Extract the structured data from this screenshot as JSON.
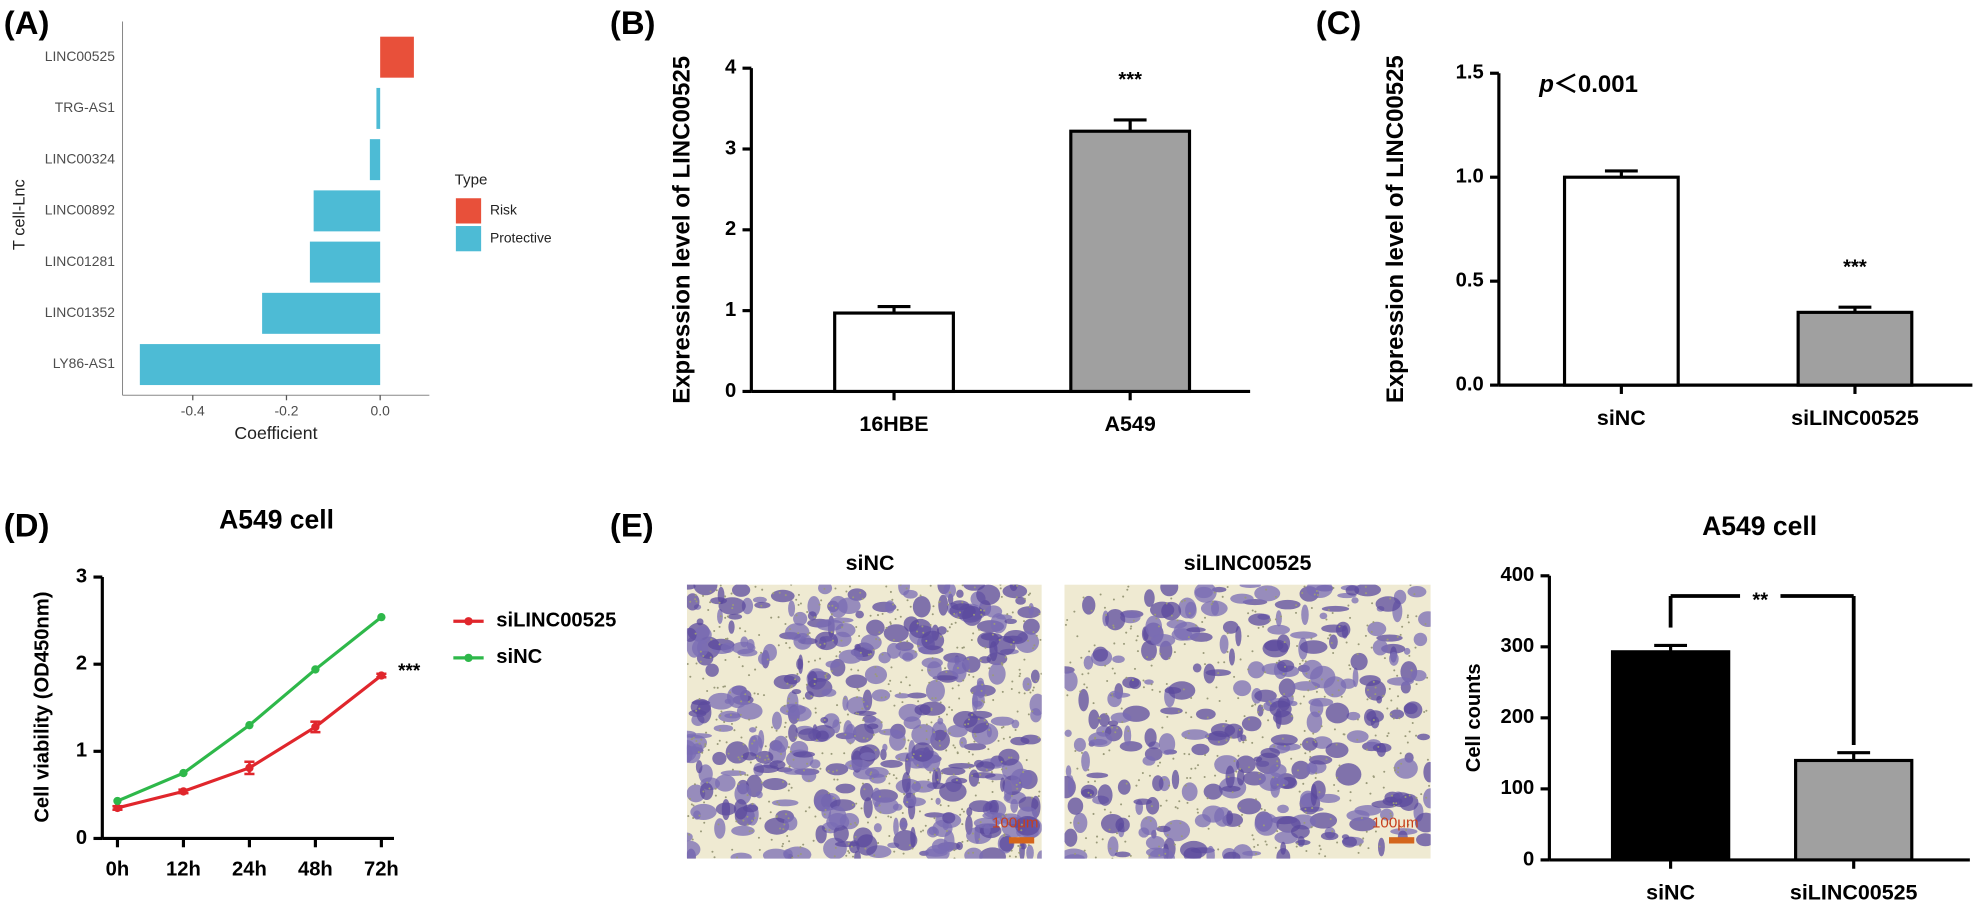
{
  "panel_labels": [
    "(A)",
    "(B)",
    "(C)",
    "(D)",
    "(E)"
  ],
  "images": {
    "labels": [
      "siNC",
      "siLINC00525"
    ],
    "scale_bar": "100μm"
  },
  "chart_data": [
    {
      "type": "bar",
      "orientation": "horizontal",
      "x_label": "Coefficient",
      "y_label": "T cell-Lnc",
      "legend_title": "Type",
      "categories": [
        "LINC00525",
        "TRG-AS1",
        "LINC00324",
        "LINC00892",
        "LINC01281",
        "LINC01352",
        "LY86-AS1"
      ],
      "series": [
        {
          "name": "Risk",
          "color": "#e8503a",
          "values": [
            0.072,
            null,
            null,
            null,
            null,
            null,
            null
          ]
        },
        {
          "name": "Protective",
          "color": "#4dbbd5",
          "values": [
            null,
            -0.008,
            -0.022,
            -0.142,
            -0.15,
            -0.252,
            -0.513
          ]
        }
      ],
      "xlim": [
        -0.55,
        0.105
      ],
      "xticks": [
        -0.4,
        -0.2,
        {
          "value": 0,
          "label": "0.0"
        }
      ]
    },
    {
      "type": "bar",
      "y_label": "Expression level of LINC00525",
      "categories": [
        "16HBE",
        "A549"
      ],
      "values": [
        0.97,
        3.22
      ],
      "errors": [
        0.08,
        0.14
      ],
      "colors": [
        "#ffffff",
        "#a0a0a0"
      ],
      "annotations": [
        null,
        "***"
      ],
      "ylim": [
        0,
        4
      ],
      "yticks": [
        0,
        1,
        2,
        3,
        4
      ]
    },
    {
      "type": "bar",
      "y_label": "Expression level of LINC00525",
      "categories": [
        "siNC",
        "siLINC00525"
      ],
      "values": [
        1.0,
        0.35
      ],
      "errors": [
        0.03,
        0.025
      ],
      "colors": [
        "#ffffff",
        "#a0a0a0"
      ],
      "annotations": [
        null,
        "***"
      ],
      "p_text": {
        "italic": "p",
        "rest": "＜0.001"
      },
      "ylim": [
        0,
        1.5
      ],
      "yticks": [
        {
          "value": 0,
          "label": "0.0"
        },
        0.5,
        {
          "value": 1,
          "label": "1.0"
        },
        1.5
      ]
    },
    {
      "type": "line",
      "title": "A549 cell",
      "y_label": "Cell viability (OD450nm)",
      "categories": [
        "0h",
        "12h",
        "24h",
        "48h",
        "72h"
      ],
      "series": [
        {
          "name": "siLINC00525",
          "color": "#e0262c",
          "values": [
            0.35,
            0.54,
            0.81,
            1.28,
            1.87
          ],
          "errors": [
            0.02,
            0.02,
            0.07,
            0.06,
            0.02
          ]
        },
        {
          "name": "siNC",
          "color": "#2eb84a",
          "values": [
            0.43,
            0.75,
            1.3,
            1.94,
            2.54
          ]
        }
      ],
      "annotation": "***",
      "ylim": [
        0,
        3
      ],
      "yticks": [
        0,
        1,
        2,
        3
      ]
    },
    {
      "type": "bar",
      "title": "A549 cell",
      "y_label": "Cell counts",
      "categories": [
        "siNC",
        "siLINC00525"
      ],
      "values": [
        293,
        140
      ],
      "errors": [
        9,
        11
      ],
      "colors": [
        "#000000",
        "#a0a0a0"
      ],
      "bracket": "**",
      "ylim": [
        0,
        400
      ],
      "yticks": [
        0,
        100,
        200,
        300,
        400
      ]
    }
  ]
}
